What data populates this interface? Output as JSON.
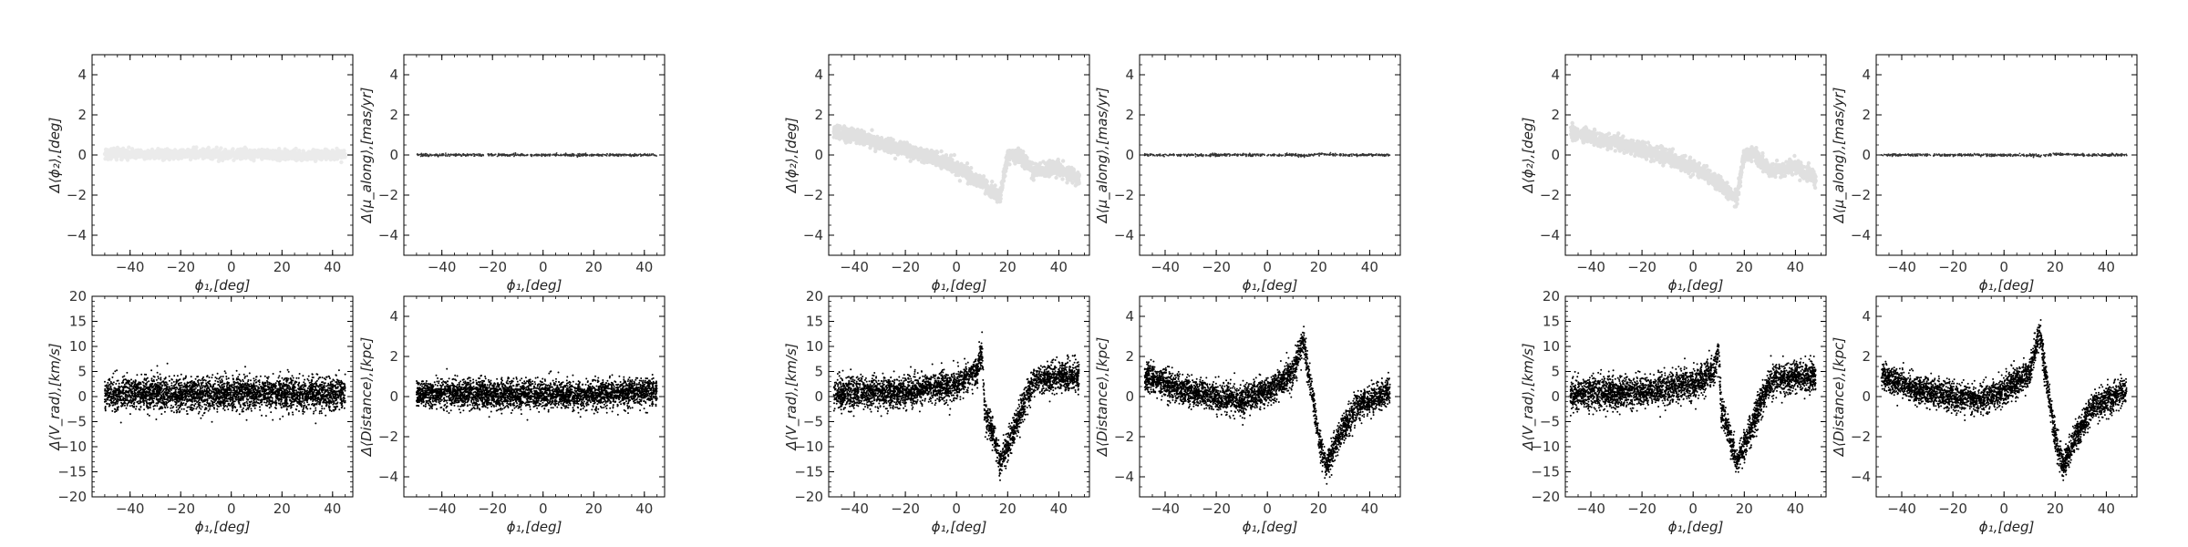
{
  "figure": {
    "background": "#ffffff"
  },
  "chart_data": [
    {
      "id": "g1_phi2",
      "type": "scatter",
      "xlabel": "ϕ₁,[deg]",
      "ylabel": "Δ⟨ϕ₂⟩,[deg]",
      "xlim": [
        -55,
        48
      ],
      "ylim": [
        -5,
        5
      ],
      "xticks": [
        -40,
        -20,
        0,
        20,
        40
      ],
      "yticks": [
        -4,
        -2,
        0,
        2,
        4
      ],
      "marker_color": "#000000",
      "marker_opacity": 0.08,
      "density": "light",
      "trend": {
        "x": [
          -50,
          -30,
          -10,
          10,
          20,
          30,
          45
        ],
        "y": [
          0.05,
          0.05,
          0.05,
          0.05,
          0.0,
          0.0,
          0.0
        ]
      },
      "scatter": 0.12,
      "n_points": 1400
    },
    {
      "id": "g1_pmu",
      "type": "scatter",
      "xlabel": "ϕ₁,[deg]",
      "ylabel": "Δ⟨μ_along⟩,[mas/yr]",
      "xlim": [
        -55,
        48
      ],
      "ylim": [
        -5,
        5
      ],
      "xticks": [
        -40,
        -20,
        0,
        20,
        40
      ],
      "yticks": [
        -4,
        -2,
        0,
        2,
        4
      ],
      "marker_color": "#000000",
      "marker_opacity": 0.8,
      "density": "line",
      "trend": {
        "x": [
          -50,
          45
        ],
        "y": [
          0.0,
          0.0
        ]
      },
      "scatter": 0.03,
      "n_points": 600
    },
    {
      "id": "g1_vrad",
      "type": "scatter",
      "xlabel": "ϕ₁,[deg]",
      "ylabel": "Δ⟨V_rad⟩,[km/s]",
      "xlim": [
        -55,
        48
      ],
      "ylim": [
        -20,
        20
      ],
      "xticks": [
        -40,
        -20,
        0,
        20,
        40
      ],
      "yticks": [
        -20,
        -15,
        -10,
        -5,
        0,
        5,
        10,
        15,
        20
      ],
      "marker_color": "#000000",
      "marker_opacity": 1.0,
      "density": "dense",
      "trend": {
        "x": [
          -50,
          45
        ],
        "y": [
          0.5,
          0.5
        ]
      },
      "scatter": 1.6,
      "n_points": 3500
    },
    {
      "id": "g1_dist",
      "type": "scatter",
      "xlabel": "ϕ₁,[deg]",
      "ylabel": "Δ⟨Distance⟩,[kpc]",
      "xlim": [
        -55,
        48
      ],
      "ylim": [
        -5,
        5
      ],
      "xticks": [
        -40,
        -20,
        0,
        20,
        40
      ],
      "yticks": [
        -4,
        -2,
        0,
        2,
        4
      ],
      "marker_color": "#000000",
      "marker_opacity": 1.0,
      "density": "dense",
      "trend": {
        "x": [
          -50,
          -10,
          20,
          45
        ],
        "y": [
          0.2,
          0.1,
          0.1,
          0.3
        ]
      },
      "scatter": 0.35,
      "n_points": 3500
    },
    {
      "id": "g2_phi2",
      "type": "scatter",
      "xlabel": "ϕ₁,[deg]",
      "ylabel": "Δ⟨ϕ₂⟩,[deg]",
      "xlim": [
        -50,
        52
      ],
      "ylim": [
        -5,
        5
      ],
      "xticks": [
        -40,
        -20,
        0,
        20,
        40
      ],
      "yticks": [
        -4,
        -2,
        0,
        2,
        4
      ],
      "marker_color": "#000000",
      "marker_opacity": 0.12,
      "density": "light",
      "trend": {
        "x": [
          -48,
          -30,
          -10,
          0,
          10,
          14,
          17,
          20,
          24,
          30,
          40,
          48
        ],
        "y": [
          1.2,
          0.6,
          -0.1,
          -0.6,
          -1.4,
          -1.9,
          -2.1,
          0.0,
          0.0,
          -0.8,
          -0.6,
          -1.2
        ]
      },
      "scatter": 0.18,
      "n_points": 1600
    },
    {
      "id": "g2_pmu",
      "type": "scatter",
      "xlabel": "ϕ₁,[deg]",
      "ylabel": "Δ⟨μ_along⟩,[mas/yr]",
      "xlim": [
        -50,
        52
      ],
      "ylim": [
        -5,
        5
      ],
      "xticks": [
        -40,
        -20,
        0,
        20,
        40
      ],
      "yticks": [
        -4,
        -2,
        0,
        2,
        4
      ],
      "marker_color": "#000000",
      "marker_opacity": 0.8,
      "density": "line",
      "trend": {
        "x": [
          -48,
          10,
          15,
          20,
          30,
          48
        ],
        "y": [
          0.0,
          0.0,
          -0.05,
          0.05,
          0.0,
          0.0
        ]
      },
      "scatter": 0.03,
      "n_points": 600
    },
    {
      "id": "g2_vrad",
      "type": "scatter",
      "xlabel": "ϕ₁,[deg]",
      "ylabel": "Δ⟨V_rad⟩,[km/s]",
      "xlim": [
        -50,
        52
      ],
      "ylim": [
        -20,
        20
      ],
      "xticks": [
        -40,
        -20,
        0,
        20,
        40
      ],
      "yticks": [
        -20,
        -15,
        -10,
        -5,
        0,
        5,
        10,
        15,
        20
      ],
      "marker_color": "#000000",
      "marker_opacity": 1.0,
      "density": "dense",
      "trend": {
        "x": [
          -48,
          -20,
          0,
          8,
          10,
          11,
          14,
          17,
          20,
          25,
          30,
          40,
          48
        ],
        "y": [
          0.5,
          1.0,
          2.5,
          5.0,
          9.0,
          -3.0,
          -7.0,
          -13.0,
          -10.0,
          -3.0,
          3.0,
          4.0,
          4.0
        ]
      },
      "scatter": 1.5,
      "n_points": 3500
    },
    {
      "id": "g2_dist",
      "type": "scatter",
      "xlabel": "ϕ₁,[deg]",
      "ylabel": "Δ⟨Distance⟩,[kpc]",
      "xlim": [
        -50,
        52
      ],
      "ylim": [
        -5,
        5
      ],
      "xticks": [
        -40,
        -20,
        0,
        20,
        40
      ],
      "yticks": [
        -4,
        -2,
        0,
        2,
        4
      ],
      "marker_color": "#000000",
      "marker_opacity": 1.0,
      "density": "dense",
      "trend": {
        "x": [
          -48,
          -30,
          -10,
          0,
          10,
          14,
          17,
          20,
          23,
          28,
          35,
          48
        ],
        "y": [
          1.0,
          0.2,
          -0.2,
          0.3,
          1.2,
          2.8,
          0.5,
          -2.0,
          -3.5,
          -2.0,
          -0.5,
          0.3
        ]
      },
      "scatter": 0.35,
      "n_points": 3500
    },
    {
      "id": "g3_phi2",
      "type": "scatter",
      "xlabel": "ϕ₁,[deg]",
      "ylabel": "Δ⟨ϕ₂⟩,[deg]",
      "xlim": [
        -50,
        52
      ],
      "ylim": [
        -5,
        5
      ],
      "xticks": [
        -40,
        -20,
        0,
        20,
        40
      ],
      "yticks": [
        -4,
        -2,
        0,
        2,
        4
      ],
      "marker_color": "#000000",
      "marker_opacity": 0.12,
      "density": "light",
      "trend": {
        "x": [
          -48,
          -30,
          -10,
          0,
          10,
          14,
          17,
          20,
          24,
          30,
          40,
          48
        ],
        "y": [
          1.1,
          0.6,
          -0.1,
          -0.6,
          -1.4,
          -1.9,
          -2.1,
          0.0,
          0.0,
          -0.8,
          -0.6,
          -1.2
        ]
      },
      "scatter": 0.18,
      "n_points": 1600
    },
    {
      "id": "g3_pmu",
      "type": "scatter",
      "xlabel": "ϕ₁,[deg]",
      "ylabel": "Δ⟨μ_along⟩,[mas/yr]",
      "xlim": [
        -50,
        52
      ],
      "ylim": [
        -5,
        5
      ],
      "xticks": [
        -40,
        -20,
        0,
        20,
        40
      ],
      "yticks": [
        -4,
        -2,
        0,
        2,
        4
      ],
      "marker_color": "#000000",
      "marker_opacity": 0.8,
      "density": "line",
      "trend": {
        "x": [
          -48,
          10,
          15,
          20,
          30,
          48
        ],
        "y": [
          0.0,
          0.0,
          -0.05,
          0.05,
          0.0,
          0.0
        ]
      },
      "scatter": 0.03,
      "n_points": 600
    },
    {
      "id": "g3_vrad",
      "type": "scatter",
      "xlabel": "ϕ₁,[deg]",
      "ylabel": "Δ⟨V_rad⟩,[km/s]",
      "xlim": [
        -50,
        52
      ],
      "ylim": [
        -20,
        20
      ],
      "xticks": [
        -40,
        -20,
        0,
        20,
        40
      ],
      "yticks": [
        -20,
        -15,
        -10,
        -5,
        0,
        5,
        10,
        15,
        20
      ],
      "marker_color": "#000000",
      "marker_opacity": 1.0,
      "density": "dense",
      "trend": {
        "x": [
          -48,
          -20,
          0,
          8,
          10,
          11,
          14,
          17,
          20,
          25,
          30,
          40,
          48
        ],
        "y": [
          0.5,
          1.0,
          2.5,
          5.0,
          9.0,
          -3.0,
          -7.0,
          -13.0,
          -10.0,
          -3.0,
          3.0,
          4.0,
          4.0
        ]
      },
      "scatter": 1.5,
      "n_points": 3500
    },
    {
      "id": "g3_dist",
      "type": "scatter",
      "xlabel": "ϕ₁,[deg]",
      "ylabel": "Δ⟨Distance⟩,[kpc]",
      "xlim": [
        -50,
        52
      ],
      "ylim": [
        -5,
        5
      ],
      "xticks": [
        -40,
        -20,
        0,
        20,
        40
      ],
      "yticks": [
        -4,
        -2,
        0,
        2,
        4
      ],
      "marker_color": "#000000",
      "marker_opacity": 1.0,
      "density": "dense",
      "trend": {
        "x": [
          -48,
          -30,
          -10,
          0,
          10,
          14,
          17,
          20,
          23,
          28,
          35,
          48
        ],
        "y": [
          1.0,
          0.2,
          -0.2,
          0.3,
          1.2,
          3.2,
          0.5,
          -2.0,
          -3.5,
          -2.0,
          -0.5,
          0.3
        ]
      },
      "scatter": 0.35,
      "n_points": 3500
    }
  ]
}
